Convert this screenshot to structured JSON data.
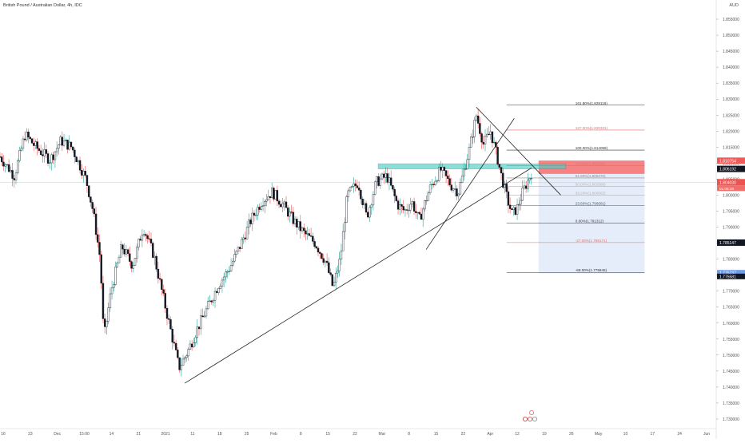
{
  "chart_data": {
    "type": "candlestick",
    "title": "British Pound / Australian Dollar, 4h, IDC",
    "currency": "AUD",
    "ylim": [
      1.7275,
      1.8575
    ],
    "price_ticks": [
      "1.855000",
      "1.850000",
      "1.845000",
      "1.840000",
      "1.835000",
      "1.830000",
      "1.825000",
      "1.820000",
      "1.815000",
      "1.810000",
      "1.805000",
      "1.800000",
      "1.795000",
      "1.790000",
      "1.785000",
      "1.780000",
      "1.775000",
      "1.770000",
      "1.765000",
      "1.760000",
      "1.755000",
      "1.750000",
      "1.745000",
      "1.740000",
      "1.735000",
      "1.730000"
    ],
    "time_ticks": [
      "16",
      "23",
      "Dec",
      "15:00",
      "14",
      "21",
      "2021",
      "11",
      "18",
      "25",
      "Feb",
      "8",
      "15",
      "22",
      "Mar",
      "8",
      "15",
      "22",
      "Apr",
      "12",
      "19",
      "26",
      "May",
      "10",
      "17",
      "24",
      "Jun"
    ],
    "price_path": [
      [
        0,
        1.812
      ],
      [
        0.02,
        1.806
      ],
      [
        0.035,
        1.819
      ],
      [
        0.05,
        1.815
      ],
      [
        0.07,
        1.811
      ],
      [
        0.085,
        1.817
      ],
      [
        0.1,
        1.815
      ],
      [
        0.12,
        1.805
      ],
      [
        0.13,
        1.795
      ],
      [
        0.14,
        1.78
      ],
      [
        0.145,
        1.755
      ],
      [
        0.155,
        1.77
      ],
      [
        0.17,
        1.784
      ],
      [
        0.185,
        1.778
      ],
      [
        0.2,
        1.79
      ],
      [
        0.215,
        1.781
      ],
      [
        0.228,
        1.768
      ],
      [
        0.24,
        1.756
      ],
      [
        0.25,
        1.746
      ],
      [
        0.262,
        1.751
      ],
      [
        0.275,
        1.758
      ],
      [
        0.29,
        1.765
      ],
      [
        0.305,
        1.772
      ],
      [
        0.32,
        1.777
      ],
      [
        0.335,
        1.784
      ],
      [
        0.35,
        1.792
      ],
      [
        0.365,
        1.798
      ],
      [
        0.38,
        1.801
      ],
      [
        0.395,
        1.797
      ],
      [
        0.41,
        1.792
      ],
      [
        0.425,
        1.788
      ],
      [
        0.44,
        1.785
      ],
      [
        0.455,
        1.779
      ],
      [
        0.465,
        1.771
      ],
      [
        0.475,
        1.78
      ],
      [
        0.485,
        1.8
      ],
      [
        0.5,
        1.804
      ],
      [
        0.512,
        1.793
      ],
      [
        0.525,
        1.804
      ],
      [
        0.54,
        1.806
      ],
      [
        0.555,
        1.797
      ],
      [
        0.565,
        1.795
      ],
      [
        0.575,
        1.798
      ],
      [
        0.585,
        1.792
      ],
      [
        0.6,
        1.802
      ],
      [
        0.615,
        1.808
      ],
      [
        0.63,
        1.803
      ],
      [
        0.64,
        1.801
      ],
      [
        0.655,
        1.814
      ],
      [
        0.665,
        1.825
      ],
      [
        0.675,
        1.816
      ],
      [
        0.685,
        1.82
      ],
      [
        0.695,
        1.811
      ],
      [
        0.7,
        1.806
      ],
      [
        0.708,
        1.799
      ],
      [
        0.715,
        1.794
      ],
      [
        0.722,
        1.796
      ],
      [
        0.73,
        1.801
      ],
      [
        0.742,
        1.807
      ]
    ],
    "current_price": "1.806192",
    "last_close": "1.804030",
    "countdown": "01:05:39",
    "stop_price": "1.810754",
    "target_price": "1.785147",
    "target_price_2": "1.775737",
    "target_price_3": "1.775581",
    "fib_levels": [
      {
        "label": "161.80%(1.828116)",
        "value": 1.828116,
        "color": "#333333"
      },
      {
        "label": "127.00%(1.820331)",
        "value": 1.820331,
        "color": "#e0706c"
      },
      {
        "label": "100.00%(1.814059)",
        "value": 1.814059,
        "color": "#333333"
      },
      {
        "label": "78.60%(1.809191)",
        "value": 1.809191,
        "color": "#e0706c"
      },
      {
        "label": "61.80%(1.805370)",
        "value": 1.80537,
        "color": "#8a8a8a"
      },
      {
        "label": "50.00%(1.802686)",
        "value": 1.802686,
        "color": "#b0b0b0"
      },
      {
        "label": "38.20%(1.800002)",
        "value": 1.800002,
        "color": "#b0b0b0"
      },
      {
        "label": "23.60%(1.796681)",
        "value": 1.796681,
        "color": "#555555"
      },
      {
        "label": "0.00%(1.791312)",
        "value": 1.791312,
        "color": "#333333"
      },
      {
        "label": "-27.00%(1.785171)",
        "value": 1.785171,
        "color": "#e0706c"
      },
      {
        "label": "-68.00%(1.775845)",
        "value": 1.775845,
        "color": "#333333"
      }
    ],
    "support_zone": [
      1.8082,
      1.8098
    ],
    "trendline": {
      "x": [
        0.258,
        0.742
      ],
      "y": [
        1.7412,
        1.8085
      ]
    },
    "channel_line": {
      "x": [
        0.595,
        0.718
      ],
      "y": [
        1.783,
        1.824
      ]
    },
    "wedge_upper": {
      "x": [
        0.665,
        0.783
      ],
      "y": [
        1.8275,
        1.8
      ]
    },
    "position": {
      "entry": 1.80663,
      "stop": 1.8108,
      "target": 1.7755
    },
    "colors": {
      "bull": "#26a69a",
      "bear": "#ef5350",
      "body": "#131722",
      "zone": "#4dd0c4",
      "risk": "#f25a5a",
      "reward": "#c8d6f5"
    }
  }
}
